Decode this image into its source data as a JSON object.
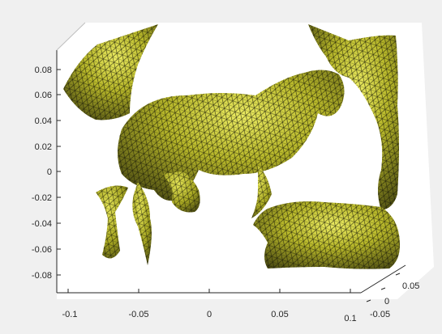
{
  "figure": {
    "background_color": "#f0f0f0",
    "axes_color": "#ffffff",
    "mesh_face_color": "#bcbc2c",
    "mesh_highlight_color": "#e8e85a",
    "mesh_shadow_color": "#4a4a10",
    "mesh_edge_color": "#1a1a08",
    "surface_description": "3D triangulated mesh surface of a horse shape (plot3/trisurf style)"
  },
  "axes": {
    "y_ticks": [
      "0.08",
      "0.06",
      "0.04",
      "0.02",
      "0",
      "-0.02",
      "-0.04",
      "-0.06",
      "-0.08"
    ],
    "x_ticks": [
      "-0.1",
      "-0.05",
      "0",
      "0.05",
      "0.1"
    ],
    "z_ticks": [
      "0.05",
      "0",
      "-0.05"
    ]
  }
}
